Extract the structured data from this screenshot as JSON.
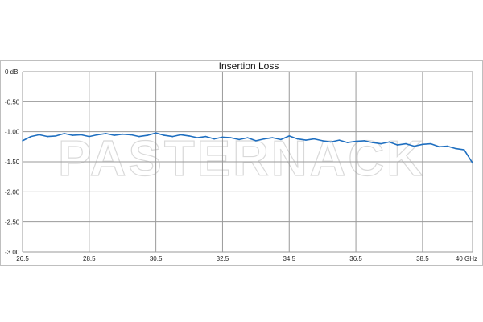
{
  "watermark_text": "PASTERNACK",
  "chart_data": {
    "type": "line",
    "title": "Insertion Loss",
    "xlabel": "",
    "ylabel": "",
    "xlim": [
      26.5,
      40
    ],
    "ylim": [
      -3.0,
      0
    ],
    "grid": true,
    "legend": "none",
    "x_ticks": [
      26.5,
      28.5,
      30.5,
      32.5,
      34.5,
      36.5,
      38.5,
      40
    ],
    "x_tick_labels": [
      "26.5",
      "28.5",
      "30.5",
      "32.5",
      "34.5",
      "36.5",
      "38.5",
      "40 GHz"
    ],
    "y_ticks": [
      0,
      -0.5,
      -1.0,
      -1.5,
      -2.0,
      -2.5,
      -3.0
    ],
    "y_tick_labels": [
      "0 dB",
      "-0.50",
      "-1.00",
      "-1.50",
      "-2.00",
      "-2.50",
      "-3.00"
    ],
    "series_color": "#1f6fc0",
    "x": [
      26.5,
      26.75,
      27.0,
      27.25,
      27.5,
      27.75,
      28.0,
      28.25,
      28.5,
      28.75,
      29.0,
      29.25,
      29.5,
      29.75,
      30.0,
      30.25,
      30.5,
      30.75,
      31.0,
      31.25,
      31.5,
      31.75,
      32.0,
      32.25,
      32.5,
      32.75,
      33.0,
      33.25,
      33.5,
      33.75,
      34.0,
      34.25,
      34.5,
      34.75,
      35.0,
      35.25,
      35.5,
      35.75,
      36.0,
      36.25,
      36.5,
      36.75,
      37.0,
      37.25,
      37.5,
      37.75,
      38.0,
      38.25,
      38.5,
      38.75,
      39.0,
      39.25,
      39.5,
      39.75,
      40.0
    ],
    "y": [
      -1.15,
      -1.08,
      -1.05,
      -1.08,
      -1.07,
      -1.03,
      -1.06,
      -1.05,
      -1.08,
      -1.05,
      -1.03,
      -1.06,
      -1.04,
      -1.05,
      -1.08,
      -1.06,
      -1.02,
      -1.06,
      -1.08,
      -1.05,
      -1.07,
      -1.1,
      -1.08,
      -1.12,
      -1.09,
      -1.1,
      -1.13,
      -1.1,
      -1.15,
      -1.12,
      -1.1,
      -1.13,
      -1.07,
      -1.12,
      -1.14,
      -1.12,
      -1.15,
      -1.17,
      -1.14,
      -1.18,
      -1.16,
      -1.15,
      -1.18,
      -1.2,
      -1.17,
      -1.22,
      -1.2,
      -1.24,
      -1.21,
      -1.2,
      -1.25,
      -1.24,
      -1.28,
      -1.3,
      -1.52
    ]
  }
}
